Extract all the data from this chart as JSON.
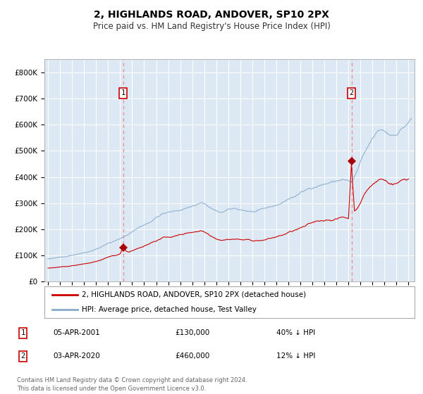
{
  "title": "2, HIGHLANDS ROAD, ANDOVER, SP10 2PX",
  "subtitle": "Price paid vs. HM Land Registry's House Price Index (HPI)",
  "background_color": "#dce9f5",
  "plot_bg_color": "#dce9f5",
  "red_line_label": "2, HIGHLANDS ROAD, ANDOVER, SP10 2PX (detached house)",
  "blue_line_label": "HPI: Average price, detached house, Test Valley",
  "footnote": "Contains HM Land Registry data © Crown copyright and database right 2024.\nThis data is licensed under the Open Government Licence v3.0.",
  "sale1_label": "1",
  "sale1_date": "05-APR-2001",
  "sale1_price": "£130,000",
  "sale1_hpi": "40% ↓ HPI",
  "sale2_label": "2",
  "sale2_date": "03-APR-2020",
  "sale2_price": "£460,000",
  "sale2_hpi": "12% ↓ HPI",
  "ylim": [
    0,
    850000
  ],
  "yticks": [
    0,
    100000,
    200000,
    300000,
    400000,
    500000,
    600000,
    700000,
    800000
  ],
  "ytick_labels": [
    "£0",
    "£100K",
    "£200K",
    "£300K",
    "£400K",
    "£500K",
    "£600K",
    "£700K",
    "£800K"
  ],
  "sale1_year": 2001.25,
  "sale1_value": 130000,
  "sale2_year": 2020.25,
  "sale2_value": 460000,
  "marker_color": "#aa0000",
  "line_color_red": "#cc0000",
  "line_color_blue": "#88aacc",
  "vline_color": "#ff8888",
  "sale_marker_size": 7
}
